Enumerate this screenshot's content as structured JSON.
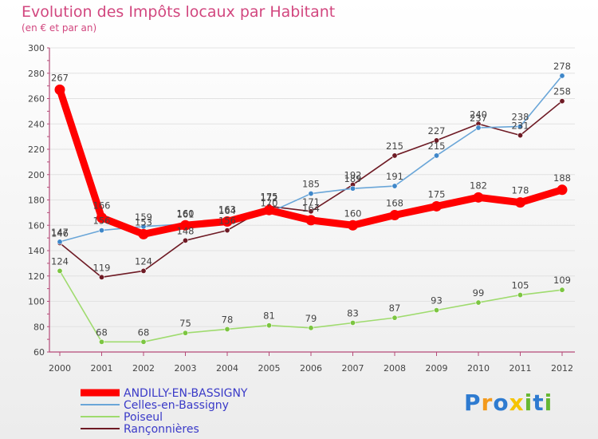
{
  "header": {
    "title": "Evolution des Impôts locaux par Habitant",
    "subtitle": "(en € et par an)"
  },
  "logo": {
    "text": "Proxiti",
    "colors": [
      "#2e7bd0",
      "#f39a1c",
      "#2e7bd0",
      "#f5c400",
      "#67b833",
      "#2e7bd0",
      "#67b833"
    ]
  },
  "colors": {
    "title": "#d2477f",
    "axis": "#b54a78",
    "grid": "#e2e2e2",
    "label": "#444444"
  },
  "chart_data": {
    "type": "line",
    "title": "Evolution des Impôts locaux par Habitant",
    "subtitle": "(en € et par an)",
    "xlabel": "",
    "ylabel": "",
    "x": [
      "2000",
      "2001",
      "2002",
      "2003",
      "2004",
      "2005",
      "2006",
      "2007",
      "2008",
      "2009",
      "2010",
      "2011",
      "2012"
    ],
    "ylim": [
      60,
      300
    ],
    "yticks": [
      "60",
      "80",
      "100",
      "120",
      "140",
      "160",
      "180",
      "200",
      "220",
      "240",
      "260",
      "280",
      "300"
    ],
    "grid": true,
    "legend_position": "bottom-left",
    "series": [
      {
        "name": "Rançonnières",
        "color": "#6e1a24",
        "dot": "#6e1a24",
        "width": 1.6,
        "values": [
          146,
          119,
          124,
          148,
          156,
          175,
          171,
          192,
          215,
          227,
          240,
          231,
          258
        ],
        "labels": [
          "146",
          "119",
          "124",
          "148",
          "156",
          "175",
          "171",
          "192",
          "215",
          "227",
          "240",
          "231",
          "258"
        ]
      },
      {
        "name": "Poiseul",
        "color": "#9fdb6e",
        "dot": "#7cc541",
        "width": 1.6,
        "values": [
          124,
          68,
          68,
          75,
          78,
          81,
          79,
          83,
          87,
          93,
          99,
          105,
          109
        ],
        "labels": [
          "124",
          "68",
          "68",
          "75",
          "78",
          "81",
          "79",
          "83",
          "87",
          "93",
          "99",
          "105",
          "109"
        ]
      },
      {
        "name": "Celles-en-Bassigny",
        "color": "#6aa6d8",
        "dot": "#3f87c9",
        "width": 1.6,
        "values": [
          147,
          156,
          159,
          161,
          164,
          170,
          185,
          189,
          191,
          215,
          237,
          238,
          278
        ],
        "labels": [
          "147",
          "156",
          "159",
          "161",
          "164",
          "170",
          "185",
          "189",
          "191",
          "215",
          "237",
          "238",
          "278"
        ]
      },
      {
        "name": "ANDILLY-EN-BASSIGNY",
        "color": "#ff0000",
        "dot": "#ff0000",
        "width": 9,
        "values": [
          267,
          166,
          153,
          160,
          163,
          172,
          164,
          160,
          168,
          175,
          182,
          178,
          188
        ],
        "labels": [
          "267",
          "166",
          "153",
          "160",
          "163",
          "172",
          "164",
          "160",
          "168",
          "175",
          "182",
          "178",
          "188"
        ]
      }
    ],
    "legend": [
      {
        "name": "ANDILLY-EN-BASSIGNY",
        "color": "#ff0000",
        "thick": true
      },
      {
        "name": "Celles-en-Bassigny",
        "color": "#6aa6d8",
        "thick": false
      },
      {
        "name": "Poiseul",
        "color": "#9fdb6e",
        "thick": false
      },
      {
        "name": "Rançonnières",
        "color": "#6e1a24",
        "thick": false
      }
    ]
  }
}
